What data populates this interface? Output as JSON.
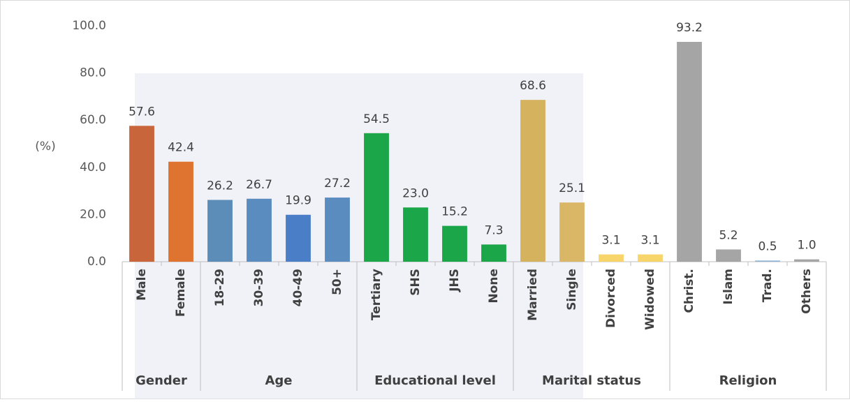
{
  "chart_data": {
    "type": "bar",
    "y_label": "(%)",
    "ylim": [
      0,
      100
    ],
    "yticks": [
      {
        "value": 0,
        "label": "0.0"
      },
      {
        "value": 20,
        "label": "20.0"
      },
      {
        "value": 40,
        "label": "40.0"
      },
      {
        "value": 60,
        "label": "60.0"
      },
      {
        "value": 80,
        "label": "80.0"
      },
      {
        "value": 100,
        "label": "100.0"
      }
    ],
    "series": [
      {
        "name": "Gender",
        "categories": [
          "Male",
          "Female"
        ],
        "values": [
          57.6,
          42.4
        ],
        "value_labels": [
          "57.6",
          "42.4"
        ],
        "colors": [
          "#c9653a",
          "#df7430"
        ]
      },
      {
        "name": "Age",
        "categories": [
          "18-29",
          "30-39",
          "40-49",
          "50+"
        ],
        "values": [
          26.2,
          26.7,
          19.9,
          27.2
        ],
        "value_labels": [
          "26.2",
          "26.7",
          "19.9",
          "27.2"
        ],
        "colors": [
          "#5b8db8",
          "#5a8cc0",
          "#4a7fc8",
          "#5a8cc0"
        ]
      },
      {
        "name": "Educational level",
        "categories": [
          "Tertiary",
          "SHS",
          "JHS",
          "None"
        ],
        "values": [
          54.5,
          23.0,
          15.2,
          7.3
        ],
        "value_labels": [
          "54.5",
          "23.0",
          "15.2",
          "7.3"
        ],
        "colors": [
          "#1ba64a",
          "#1ba64a",
          "#1ba64a",
          "#1ba64a"
        ]
      },
      {
        "name": "Marital status",
        "categories": [
          "Married",
          "Single",
          "Divorced",
          "Widowed"
        ],
        "values": [
          68.6,
          25.1,
          3.1,
          3.1
        ],
        "value_labels": [
          "68.6",
          "25.1",
          "3.1",
          "3.1"
        ],
        "colors": [
          "#d4b25e",
          "#d9b766",
          "#f8d56a",
          "#f8d56a"
        ]
      },
      {
        "name": "Religion",
        "categories": [
          "Christ.",
          "Islam",
          "Trad.",
          "Others"
        ],
        "values": [
          93.2,
          5.2,
          0.5,
          1.0
        ],
        "value_labels": [
          "93.2",
          "5.2",
          "0.5",
          "1.0"
        ],
        "colors": [
          "#a5a5a5",
          "#a5a5a5",
          "#8fb6d6",
          "#a5a5a5"
        ]
      }
    ]
  }
}
